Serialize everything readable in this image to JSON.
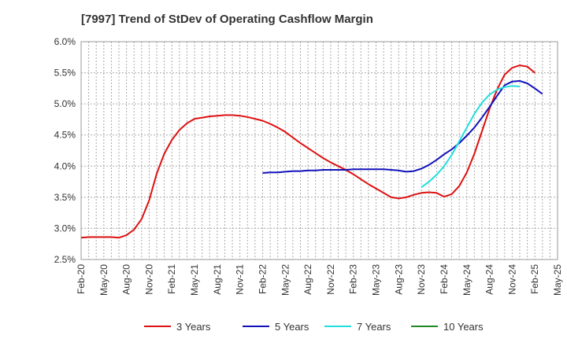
{
  "chart_data": {
    "type": "line",
    "title": "[7997]  Trend of StDev of Operating Cashflow Margin",
    "xlabel": "",
    "ylabel": "",
    "ylim": [
      2.5,
      6.0
    ],
    "y_ticks": [
      "2.5%",
      "3.0%",
      "3.5%",
      "4.0%",
      "4.5%",
      "5.0%",
      "5.5%",
      "6.0%"
    ],
    "x_ticks": [
      "Feb-20",
      "May-20",
      "Aug-20",
      "Nov-20",
      "Feb-21",
      "May-21",
      "Aug-21",
      "Nov-21",
      "Feb-22",
      "May-22",
      "Aug-22",
      "Nov-22",
      "Feb-23",
      "May-23",
      "Aug-23",
      "Nov-23",
      "Feb-24",
      "May-24",
      "Aug-24",
      "Nov-24",
      "Feb-25",
      "May-25"
    ],
    "grid": true,
    "legend_position": "bottom",
    "series": [
      {
        "name": "3 Years",
        "color": "#dd1111",
        "start": "Feb-20",
        "values": [
          2.85,
          2.86,
          2.86,
          2.86,
          2.86,
          2.85,
          2.89,
          2.98,
          3.15,
          3.45,
          3.88,
          4.2,
          4.42,
          4.58,
          4.69,
          4.76,
          4.78,
          4.8,
          4.81,
          4.82,
          4.82,
          4.81,
          4.79,
          4.76,
          4.73,
          4.68,
          4.62,
          4.55,
          4.46,
          4.37,
          4.29,
          4.21,
          4.13,
          4.06,
          4.0,
          3.94,
          3.87,
          3.79,
          3.71,
          3.64,
          3.57,
          3.5,
          3.48,
          3.5,
          3.54,
          3.57,
          3.58,
          3.57,
          3.51,
          3.55,
          3.68,
          3.9,
          4.2,
          4.56,
          4.92,
          5.23,
          5.47,
          5.58,
          5.62,
          5.6,
          5.5
        ]
      },
      {
        "name": "5 Years",
        "color": "#1111bb",
        "start": "Feb-22",
        "values": [
          3.89,
          3.9,
          3.9,
          3.91,
          3.92,
          3.92,
          3.93,
          3.93,
          3.94,
          3.94,
          3.94,
          3.94,
          3.95,
          3.95,
          3.95,
          3.95,
          3.95,
          3.94,
          3.93,
          3.91,
          3.92,
          3.96,
          4.02,
          4.1,
          4.19,
          4.27,
          4.37,
          4.49,
          4.62,
          4.78,
          4.95,
          5.13,
          5.3,
          5.36,
          5.37,
          5.33,
          5.25,
          5.16
        ]
      },
      {
        "name": "7 Years",
        "color": "#22dddd",
        "start": "Nov-23",
        "values": [
          3.66,
          3.75,
          3.86,
          4.0,
          4.18,
          4.4,
          4.62,
          4.84,
          5.02,
          5.15,
          5.23,
          5.27,
          5.29,
          5.28
        ]
      },
      {
        "name": "10 Years",
        "color": "#228822",
        "start": "",
        "values": []
      }
    ]
  }
}
